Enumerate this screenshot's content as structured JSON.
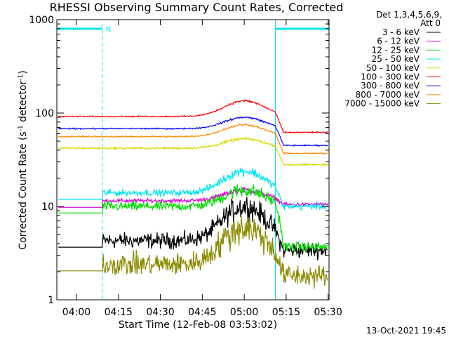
{
  "chart_data": {
    "type": "line",
    "title": "RHESSI Observing Summary Count Rates, Corrected",
    "xlabel": "Start Time (12-Feb-08 03:53:02)",
    "ylabel_main": "Corrected Count Rate (s",
    "ylabel_sup1": "-1",
    "ylabel_mid": " detector",
    "ylabel_sup2": "-1",
    "ylabel_end": ")",
    "yscale": "log",
    "ylim": [
      1,
      1000
    ],
    "xlim_minutes": [
      -0.05,
      97.3
    ],
    "x_ticks": [
      {
        "label": "04:00",
        "m": 6.97
      },
      {
        "label": "04:15",
        "m": 21.97
      },
      {
        "label": "04:30",
        "m": 36.97
      },
      {
        "label": "04:45",
        "m": 51.97
      },
      {
        "label": "05:00",
        "m": 66.97
      },
      {
        "label": "05:15",
        "m": 81.97
      },
      {
        "label": "05:30",
        "m": 96.97
      }
    ],
    "y_ticks": [
      {
        "label": "1",
        "v": 1
      },
      {
        "label": "10",
        "v": 10
      },
      {
        "label": "100",
        "v": 100
      },
      {
        "label": "1000",
        "v": 1000
      }
    ],
    "legend_header_1": "Det 1,3,4,5,6,9,",
    "legend_header_2": "Att 0",
    "night_intervals": [
      [
        -0.05,
        16.2
      ],
      [
        78.1,
        97.3
      ]
    ],
    "saa_label": "N",
    "colors": {
      "night": "#00e5ee"
    },
    "series": [
      {
        "name": "3 - 6 keV",
        "color": "#000000",
        "base": 4.3,
        "peak": 10,
        "noise": 0.25,
        "end": 3.4
      },
      {
        "name": "6 - 12 keV",
        "color": "#e000e0",
        "base": 11.5,
        "peak": 15,
        "noise": 0.06,
        "end": 10.5
      },
      {
        "name": "12 - 25 keV",
        "color": "#00e000",
        "base": 10,
        "peak": 15,
        "noise": 0.15,
        "end": 3.7
      },
      {
        "name": "25 - 50 keV",
        "color": "#00e5ee",
        "base": 14,
        "peak": 24,
        "noise": 0.1,
        "end": 10
      },
      {
        "name": "50 - 100 keV",
        "color": "#d8d800",
        "base": 42,
        "peak": 53,
        "noise": 0.03,
        "end": 28
      },
      {
        "name": "100 - 300 keV",
        "color": "#ff0000",
        "base": 92,
        "peak": 135,
        "noise": 0.02,
        "end": 62
      },
      {
        "name": "300 - 800 keV",
        "color": "#0000ff",
        "base": 68,
        "peak": 90,
        "noise": 0.02,
        "end": 45
      },
      {
        "name": "800 - 7000 keV",
        "color": "#ff8800",
        "base": 56,
        "peak": 75,
        "noise": 0.02,
        "end": 37
      },
      {
        "name": "7000 - 15000 keV",
        "color": "#8b8b00",
        "base": 2.4,
        "peak": 6,
        "noise": 0.35,
        "end": 1.8
      }
    ]
  },
  "footer": {
    "timestamp": "13-Oct-2021 19:45"
  }
}
